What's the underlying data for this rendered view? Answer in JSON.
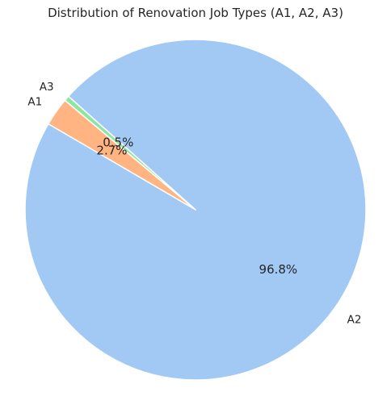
{
  "chart_data": {
    "type": "pie",
    "title": "Distribution of Renovation Job Types (A1, A2, A3)",
    "slices": [
      {
        "label": "A1",
        "value": 2.7,
        "color": "#ffb482",
        "pct_label": "2.7%"
      },
      {
        "label": "A2",
        "value": 96.8,
        "color": "#a1c9f4",
        "pct_label": "96.8%"
      },
      {
        "label": "A3",
        "value": 0.5,
        "color": "#8de5a1",
        "pct_label": "0.5%"
      }
    ],
    "start_angle_deg": 140,
    "counterclock": true,
    "legend": "none"
  }
}
